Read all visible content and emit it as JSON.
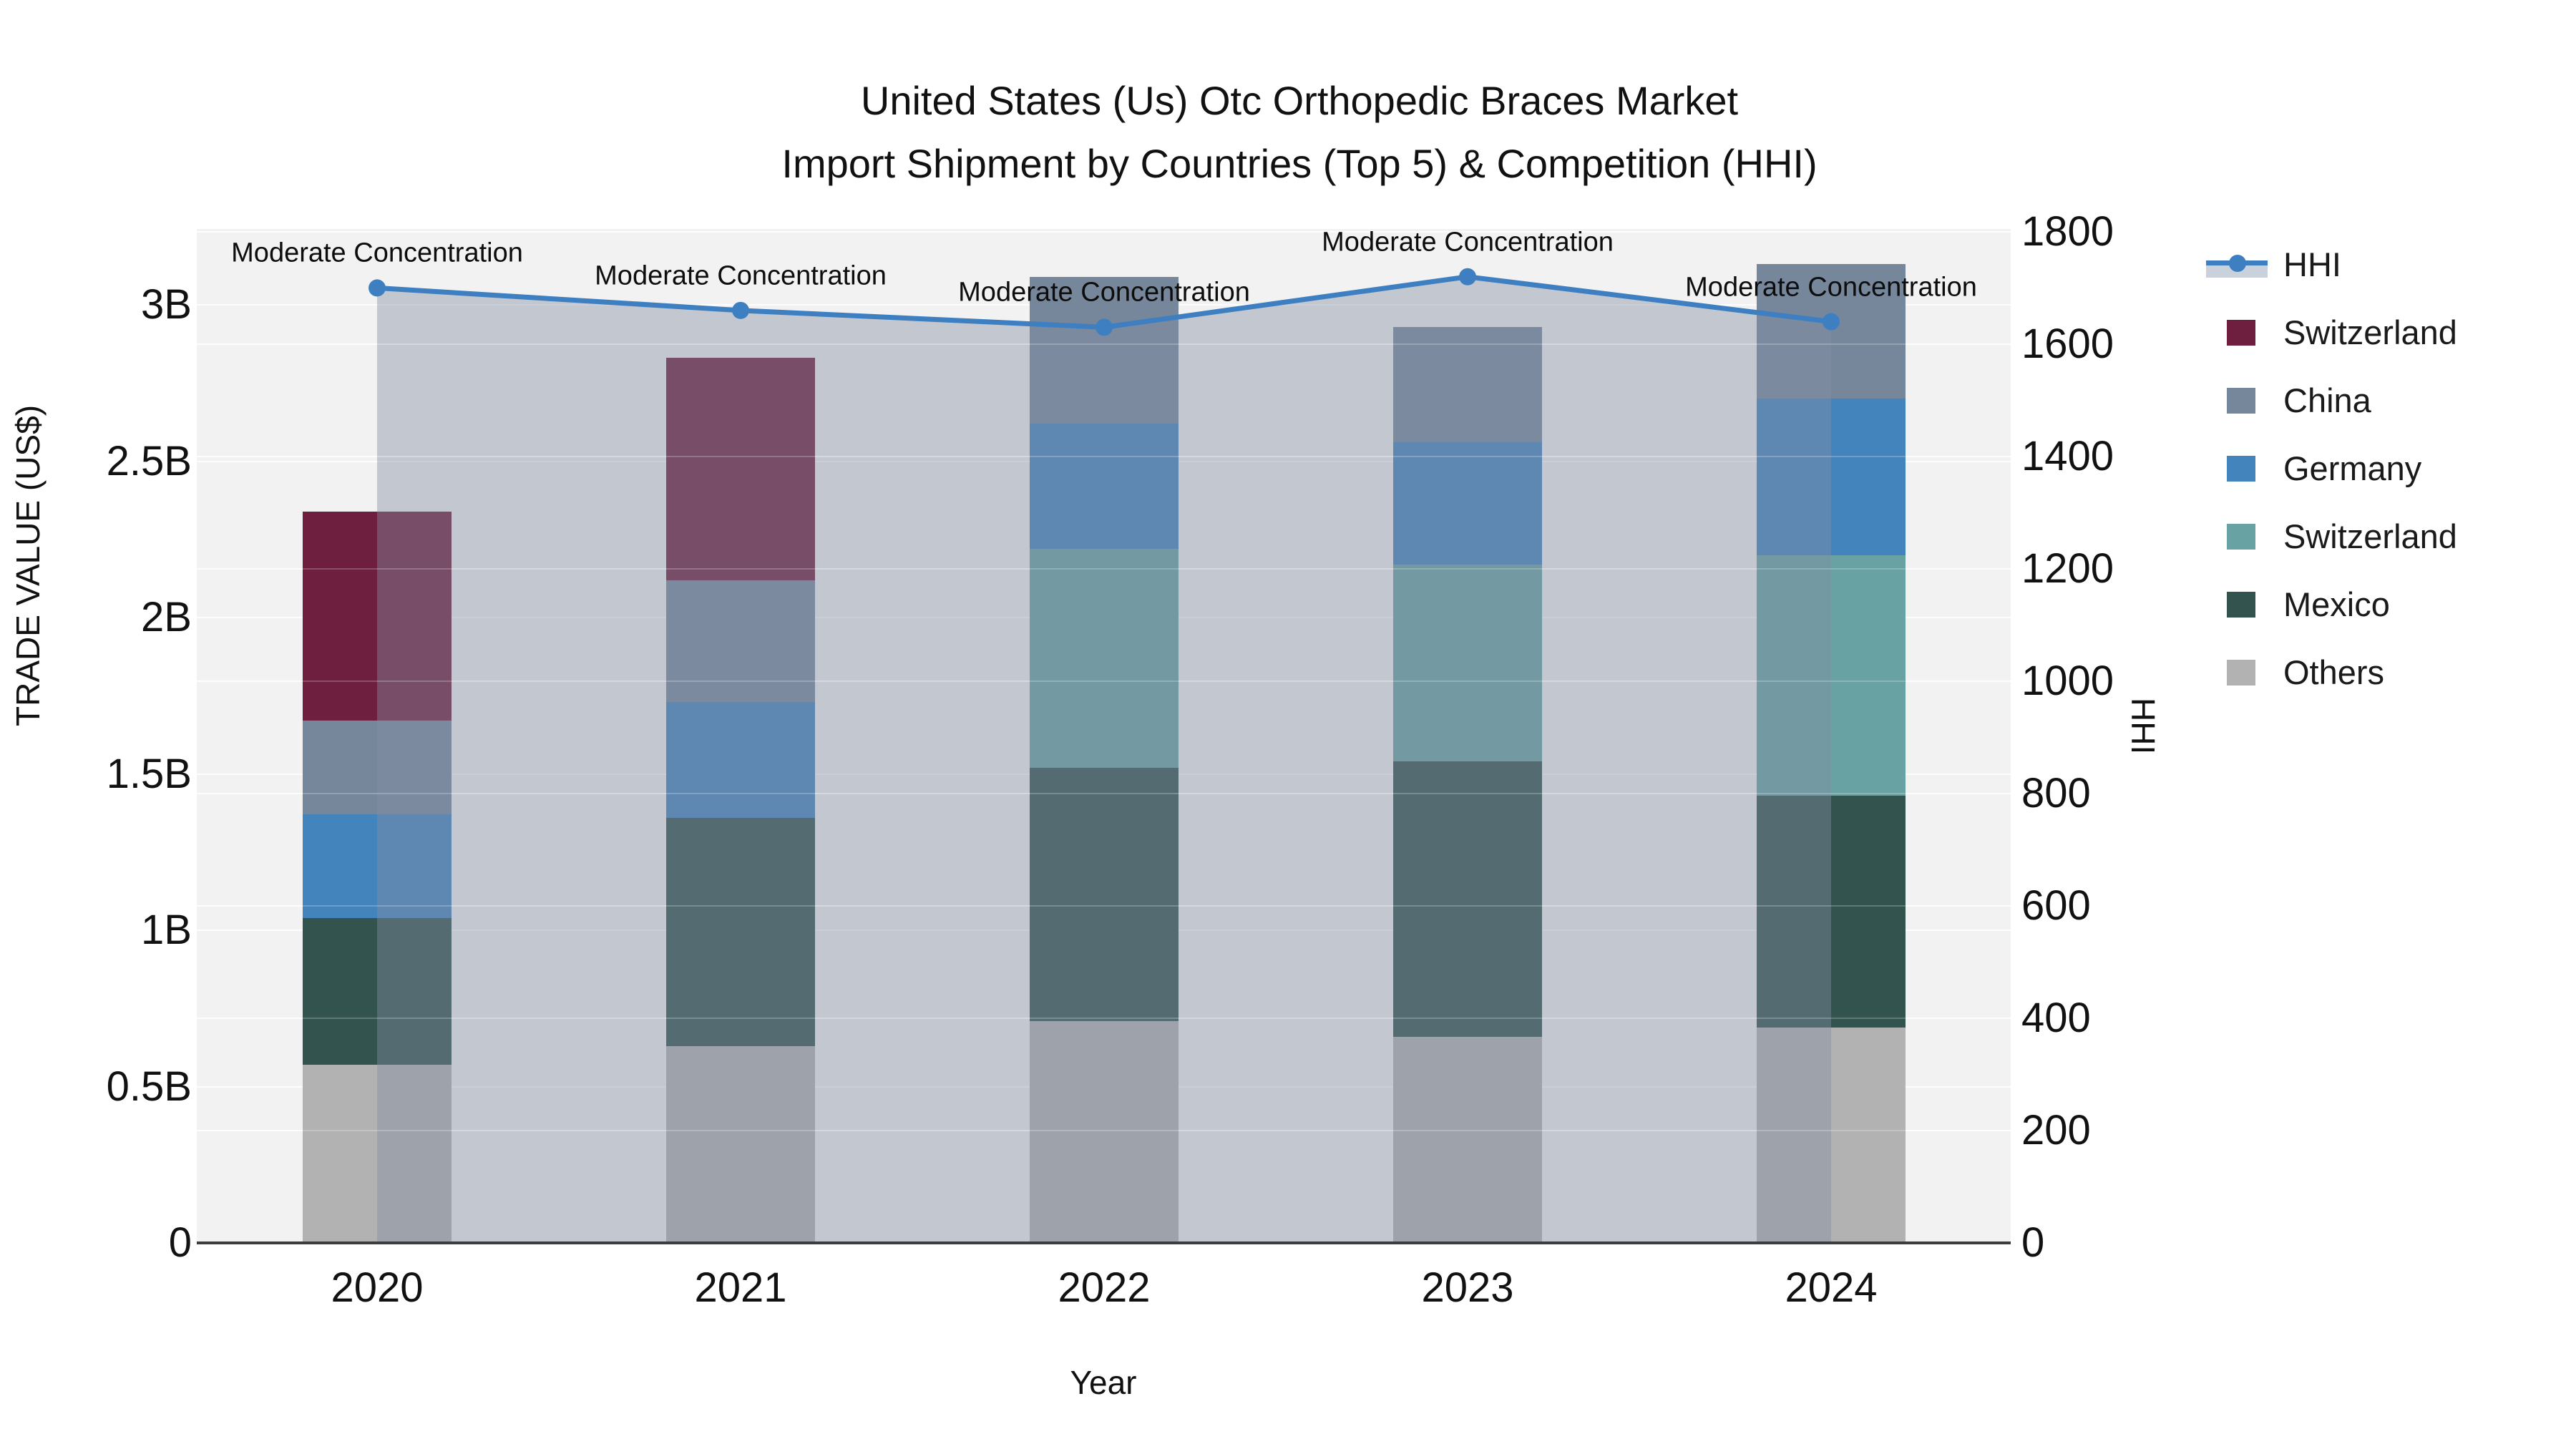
{
  "title": {
    "line1": "United States (Us) Otc Orthopedic Braces Market",
    "line2": "Import Shipment by Countries (Top 5) & Competition (HHI)"
  },
  "chart_data": {
    "type": "bar",
    "subtype": "stacked_bars_with_secondary_axis_line",
    "title": "United States (Us) Otc Orthopedic Braces Market Import Shipment by Countries (Top 5) & Competition (HHI)",
    "xlabel": "Year",
    "ylabel_left": "TRADE VALUE (US$)",
    "ylabel_right": "HHI",
    "categories": [
      "2020",
      "2021",
      "2022",
      "2023",
      "2024"
    ],
    "value_unit": "billions of US$",
    "stack_note": "series listed top-of-stack first; bars stack in reverse order (Others at bottom)",
    "series": [
      {
        "name": "Switzerland",
        "color": "#6E1E3E",
        "values": [
          0.67,
          0.71,
          0,
          0,
          0
        ]
      },
      {
        "name": "China",
        "color": "#76879B",
        "values": [
          0.3,
          0.39,
          0.47,
          0.37,
          0.43
        ]
      },
      {
        "name": "Germany",
        "color": "#4484BC",
        "values": [
          0.33,
          0.37,
          0.4,
          0.39,
          0.5
        ]
      },
      {
        "name": "Switzerland",
        "color": "#68A2A2",
        "values": [
          0,
          0,
          0.7,
          0.63,
          0.77
        ]
      },
      {
        "name": "Mexico",
        "color": "#33544E",
        "values": [
          0.47,
          0.73,
          0.81,
          0.88,
          0.74
        ]
      },
      {
        "name": "Others",
        "color": "#B2B2B2",
        "values": [
          0.57,
          0.63,
          0.71,
          0.66,
          0.69
        ]
      }
    ],
    "bar_totals": [
      2.34,
      2.83,
      3.09,
      2.93,
      3.13
    ],
    "line_series": {
      "name": "HHI",
      "axis": "right",
      "color": "#3E7FC1",
      "fill_under_line_color": "#828EA2",
      "fill_under_line_opacity": 0.42,
      "values": [
        1700,
        1660,
        1630,
        1720,
        1640
      ]
    },
    "annotations": [
      {
        "text": "Moderate Concentration",
        "category": "2020"
      },
      {
        "text": "Moderate Concentration",
        "category": "2021"
      },
      {
        "text": "Moderate Concentration",
        "category": "2022"
      },
      {
        "text": "Moderate Concentration",
        "category": "2023"
      },
      {
        "text": "Moderate Concentration",
        "category": "2024"
      }
    ],
    "left_ticks": [
      "0",
      "0.5B",
      "1B",
      "1.5B",
      "2B",
      "2.5B",
      "3B"
    ],
    "left_tick_values": [
      0,
      0.5,
      1,
      1.5,
      2,
      2.5,
      3
    ],
    "right_ticks": [
      "0",
      "200",
      "400",
      "600",
      "800",
      "1000",
      "1200",
      "1400",
      "1600",
      "1800"
    ],
    "right_tick_values": [
      0,
      200,
      400,
      600,
      800,
      1000,
      1200,
      1400,
      1600,
      1800
    ],
    "ylim_left": [
      0,
      3.243
    ],
    "ylim_right": [
      0,
      1805
    ],
    "grid": "horizontal",
    "legend_position": "right",
    "colors": {
      "plot_bg": "#F2F2F2",
      "axis_line": "#3D3D3D",
      "text": "#111111"
    }
  },
  "legend": {
    "hhi_label": "HHI"
  }
}
